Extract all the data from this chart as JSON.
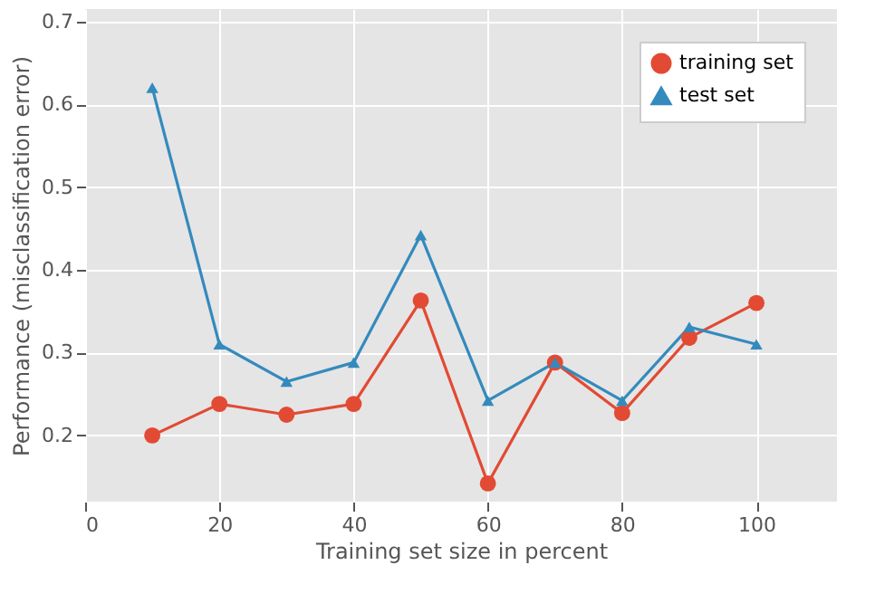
{
  "chart_data": {
    "type": "line",
    "xlabel": "Training set size in percent",
    "ylabel": "Performance (misclassification error)",
    "x": [
      10,
      20,
      30,
      40,
      50,
      60,
      70,
      80,
      90,
      100
    ],
    "series": [
      {
        "name": "training set",
        "color": "#e24a33",
        "marker": "circle",
        "values": [
          0.2,
          0.238,
          0.225,
          0.238,
          0.363,
          0.142,
          0.288,
          0.227,
          0.318,
          0.36
        ]
      },
      {
        "name": "test set",
        "color": "#348abd",
        "marker": "triangle",
        "values": [
          0.62,
          0.31,
          0.265,
          0.288,
          0.442,
          0.242,
          0.288,
          0.242,
          0.331,
          0.31
        ]
      }
    ],
    "xlim": [
      0,
      112
    ],
    "xticks": [
      0,
      20,
      40,
      60,
      80,
      100
    ],
    "ylim": [
      0.12,
      0.715
    ],
    "yticks": [
      0.2,
      0.3,
      0.4,
      0.5,
      0.6,
      0.7
    ],
    "grid": true,
    "legend": "top right",
    "line_style": "solid"
  }
}
